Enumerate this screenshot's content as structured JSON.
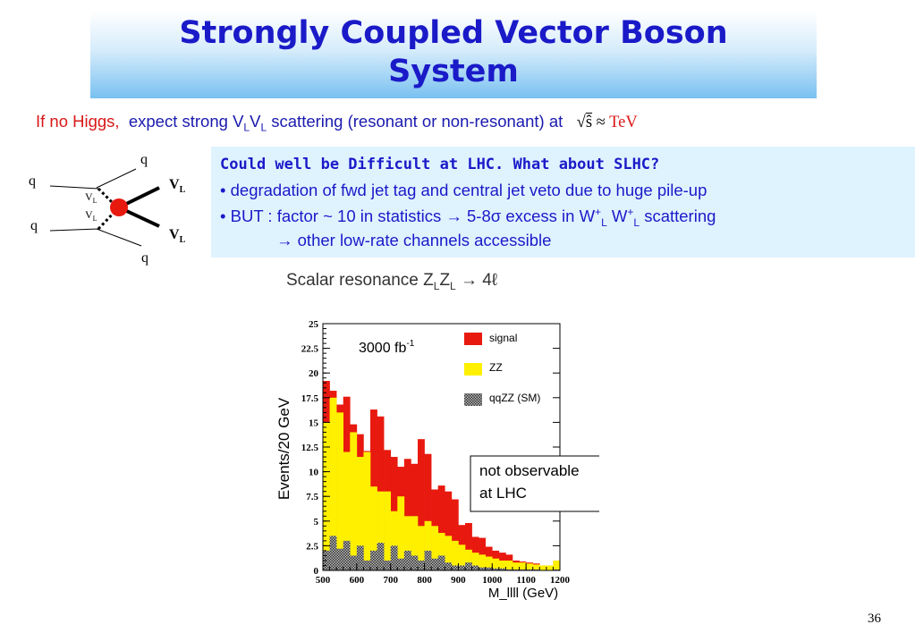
{
  "title": {
    "line1": "Strongly Coupled Vector Boson",
    "line2": "System"
  },
  "subtitle": {
    "part_red": "If no Higgs,",
    "part_a": "expect  strong V",
    "sub1": "L",
    "part_b": "V",
    "sub2": "L",
    "part_c": " scattering (resonant or  non-resonant) at",
    "sqrt_arg": "ŝ",
    "approx": "≈",
    "unit": "TeV"
  },
  "notes": {
    "heading": "Could well be Difficult at LHC. What about SLHC?",
    "bullet1": "• degradation of fwd jet tag and central jet veto due to huge pile-up",
    "bullet2_a": "• BUT : factor ~ 10 in statistics → 5-8σ excess in W",
    "bullet2_sup1": "+",
    "bullet2_sub1": "L",
    "bullet2_b": " W",
    "bullet2_sup2": "+",
    "bullet2_sub2": "L",
    "bullet2_c": " scattering",
    "bullet3": "→ other low-rate channels accessible"
  },
  "diagram": {
    "q": "q",
    "vl": "V",
    "sub": "L"
  },
  "plot": {
    "heading_a": "Scalar resonance Z",
    "heading_sub1": "L",
    "heading_b": "Z",
    "heading_sub2": "L",
    "heading_c": " → 4ℓ",
    "lumi": "3000 fb",
    "lumi_sup": "-1",
    "annotation_line1": "not observable",
    "annotation_line2": "at LHC"
  },
  "chart_data": {
    "type": "bar",
    "title": "",
    "xlabel": "M_llll (GeV)",
    "ylabel": "Events/20 GeV",
    "xlim": [
      500,
      1200
    ],
    "ylim": [
      0,
      25
    ],
    "x_ticks": [
      "500",
      "600",
      "700",
      "800",
      "900",
      "1000",
      "1100",
      "1200"
    ],
    "y_ticks": [
      "0",
      "2.5",
      "5",
      "7.5",
      "10",
      "12.5",
      "15",
      "17.5",
      "20",
      "22.5",
      "25"
    ],
    "bin_edges_start": 500,
    "bin_width": 20,
    "legend": {
      "placement": "top-right",
      "entries": [
        "signal",
        "ZZ",
        "qqZZ (SM)"
      ]
    },
    "colors": {
      "signal": "#e8190f",
      "ZZ": "#fff000",
      "qqZZ (SM)": "#909090"
    },
    "series": [
      {
        "name": "qqZZ (SM)",
        "values": [
          2.0,
          3.5,
          2.2,
          3.0,
          1.5,
          2.5,
          1.0,
          2.0,
          2.8,
          1.0,
          2.5,
          1.2,
          2.0,
          1.5,
          1.0,
          2.0,
          1.2,
          1.5,
          0.8,
          0.5,
          0.5,
          0.8,
          0.5,
          0.3,
          0.3,
          0.2,
          0.2,
          0.1,
          0.1,
          0.1,
          0.1,
          0.1,
          0.0,
          0.0,
          0.1
        ]
      },
      {
        "name": "ZZ",
        "values": [
          15.0,
          17.5,
          16.0,
          12.0,
          14.0,
          11.5,
          12.0,
          8.5,
          8.0,
          8.0,
          6.0,
          7.5,
          5.5,
          5.5,
          4.5,
          5.0,
          4.5,
          3.8,
          3.5,
          3.0,
          2.6,
          2.1,
          1.8,
          1.6,
          1.4,
          1.2,
          1.0,
          1.0,
          0.8,
          0.8,
          0.7,
          0.6,
          0.5,
          0.5,
          1.0
        ]
      },
      {
        "name": "signal",
        "values": [
          19.2,
          18.2,
          16.8,
          17.6,
          14.8,
          13.8,
          12.1,
          16.3,
          15.6,
          12.2,
          11.5,
          10.5,
          11.3,
          10.8,
          13.3,
          11.8,
          8.2,
          8.6,
          8.0,
          7.2,
          4.6,
          4.8,
          3.4,
          3.3,
          2.4,
          2.0,
          1.8,
          1.6,
          1.0,
          0.9,
          0.8,
          0.7,
          0.5,
          0.5,
          1.0
        ]
      }
    ]
  },
  "page_number": "36"
}
